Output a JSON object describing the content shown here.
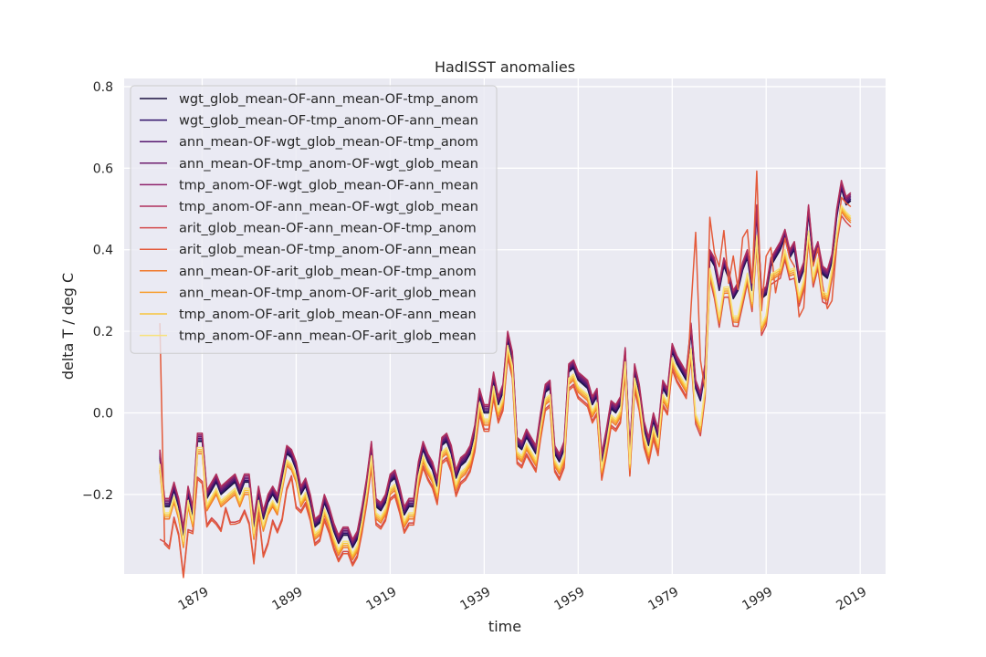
{
  "chart_data": {
    "type": "line",
    "title": "HadISST anomalies",
    "xlabel": "time",
    "ylabel": "delta T / deg C",
    "xlim": [
      1862.4,
      2024.4
    ],
    "ylim": [
      -0.395,
      0.82
    ],
    "xticks": [
      1879,
      1899,
      1919,
      1939,
      1959,
      1979,
      1999,
      2019
    ],
    "xtick_labels": [
      "1879",
      "1899",
      "1919",
      "1939",
      "1959",
      "1979",
      "1999",
      "2019"
    ],
    "yticks": [
      -0.2,
      0.0,
      0.2,
      0.4,
      0.6,
      0.8
    ],
    "ytick_labels": [
      "−0.2",
      "0.0",
      "0.2",
      "0.4",
      "0.6",
      "0.8"
    ],
    "grid": true,
    "legend_position": "top-left",
    "x": [
      1870,
      1871,
      1872,
      1873,
      1874,
      1875,
      1876,
      1877,
      1878,
      1879,
      1880,
      1881,
      1882,
      1883,
      1884,
      1885,
      1886,
      1887,
      1888,
      1889,
      1890,
      1891,
      1892,
      1893,
      1894,
      1895,
      1896,
      1897,
      1898,
      1899,
      1900,
      1901,
      1902,
      1903,
      1904,
      1905,
      1906,
      1907,
      1908,
      1909,
      1910,
      1911,
      1912,
      1913,
      1914,
      1915,
      1916,
      1917,
      1918,
      1919,
      1920,
      1921,
      1922,
      1923,
      1924,
      1925,
      1926,
      1927,
      1928,
      1929,
      1930,
      1931,
      1932,
      1933,
      1934,
      1935,
      1936,
      1937,
      1938,
      1939,
      1940,
      1941,
      1942,
      1943,
      1944,
      1945,
      1946,
      1947,
      1948,
      1949,
      1950,
      1951,
      1952,
      1953,
      1954,
      1955,
      1956,
      1957,
      1958,
      1959,
      1960,
      1961,
      1962,
      1963,
      1964,
      1965,
      1966,
      1967,
      1968,
      1969,
      1970,
      1971,
      1972,
      1973,
      1974,
      1975,
      1976,
      1977,
      1978,
      1979,
      1980,
      1981,
      1982,
      1983,
      1984,
      1985,
      1986,
      1987,
      1988,
      1989,
      1990,
      1991,
      1992,
      1993,
      1994,
      1995,
      1996,
      1997,
      1998,
      1999,
      2000,
      2001,
      2002,
      2003,
      2004,
      2005,
      2006,
      2007,
      2008,
      2009,
      2010,
      2011,
      2012,
      2013,
      2014,
      2015,
      2016,
      2017,
      2018,
      2019
    ],
    "reference_wgt": [
      -0.11,
      -0.23,
      -0.23,
      -0.19,
      -0.23,
      -0.3,
      -0.2,
      -0.25,
      -0.07,
      -0.07,
      -0.21,
      -0.19,
      -0.17,
      -0.2,
      -0.19,
      -0.18,
      -0.17,
      -0.2,
      -0.17,
      -0.17,
      -0.28,
      -0.2,
      -0.26,
      -0.22,
      -0.2,
      -0.22,
      -0.16,
      -0.1,
      -0.11,
      -0.14,
      -0.2,
      -0.18,
      -0.22,
      -0.28,
      -0.27,
      -0.22,
      -0.25,
      -0.29,
      -0.32,
      -0.3,
      -0.3,
      -0.33,
      -0.31,
      -0.25,
      -0.18,
      -0.09,
      -0.23,
      -0.24,
      -0.22,
      -0.17,
      -0.16,
      -0.2,
      -0.25,
      -0.23,
      -0.23,
      -0.14,
      -0.09,
      -0.12,
      -0.14,
      -0.18,
      -0.08,
      -0.07,
      -0.1,
      -0.16,
      -0.13,
      -0.12,
      -0.1,
      -0.05,
      0.04,
      0.0,
      0.0,
      0.08,
      0.02,
      0.05,
      0.18,
      0.13,
      -0.08,
      -0.09,
      -0.06,
      -0.08,
      -0.1,
      -0.02,
      0.05,
      0.06,
      -0.1,
      -0.12,
      -0.09,
      0.1,
      0.11,
      0.08,
      0.07,
      0.06,
      0.02,
      0.04,
      -0.12,
      -0.06,
      0.01,
      0.0,
      0.02,
      0.14,
      -0.11,
      0.1,
      0.05,
      -0.04,
      -0.08,
      -0.02,
      -0.06,
      0.06,
      0.04,
      0.15,
      0.12,
      0.1,
      0.08,
      0.2,
      0.06,
      0.03,
      0.1,
      0.38,
      0.36,
      0.3,
      0.36,
      0.33,
      0.28,
      0.3,
      0.35,
      0.38,
      0.3,
      0.49,
      0.28,
      0.29,
      0.36,
      0.38,
      0.4,
      0.43,
      0.38,
      0.4,
      0.32,
      0.35,
      0.49,
      0.37,
      0.4,
      0.34,
      0.33,
      0.37,
      0.48,
      0.55,
      0.51,
      0.52
    ],
    "series": [
      {
        "name": "wgt_glob_mean-OF-ann_mean-OF-tmp_anom",
        "color": "#1a1140",
        "offset": 0.0
      },
      {
        "name": "wgt_glob_mean-OF-tmp_anom-OF-ann_mean",
        "color": "#2f1168",
        "offset": 0.004
      },
      {
        "name": "ann_mean-OF-wgt_glob_mean-OF-tmp_anom",
        "color": "#56166f",
        "offset": 0.008
      },
      {
        "name": "ann_mean-OF-tmp_anom-OF-wgt_glob_mean",
        "color": "#6e1d6e",
        "offset": 0.012
      },
      {
        "name": "tmp_anom-OF-wgt_glob_mean-OF-ann_mean",
        "color": "#8e226a",
        "offset": 0.016
      },
      {
        "name": "tmp_anom-OF-ann_mean-OF-wgt_glob_mean",
        "color": "#b02f5c",
        "offset": 0.02
      },
      {
        "name": "arit_glob_mean-OF-ann_mean-OF-tmp_anom",
        "color": "#d34a4b",
        "offset": -0.04
      },
      {
        "name": "arit_glob_mean-OF-tmp_anom-OF-ann_mean",
        "color": "#e45a3a",
        "offset": -0.045
      },
      {
        "name": "ann_mean-OF-arit_glob_mean-OF-tmp_anom",
        "color": "#f0782a",
        "offset": -0.03
      },
      {
        "name": "ann_mean-OF-tmp_anom-OF-arit_glob_mean",
        "color": "#f7a032",
        "offset": -0.025
      },
      {
        "name": "tmp_anom-OF-arit_glob_mean-OF-ann_mean",
        "color": "#f8c53c",
        "offset": -0.02
      },
      {
        "name": "tmp_anom-OF-ann_mean-OF-arit_glob_mean",
        "color": "#f7e27a",
        "offset": -0.015
      }
    ]
  }
}
